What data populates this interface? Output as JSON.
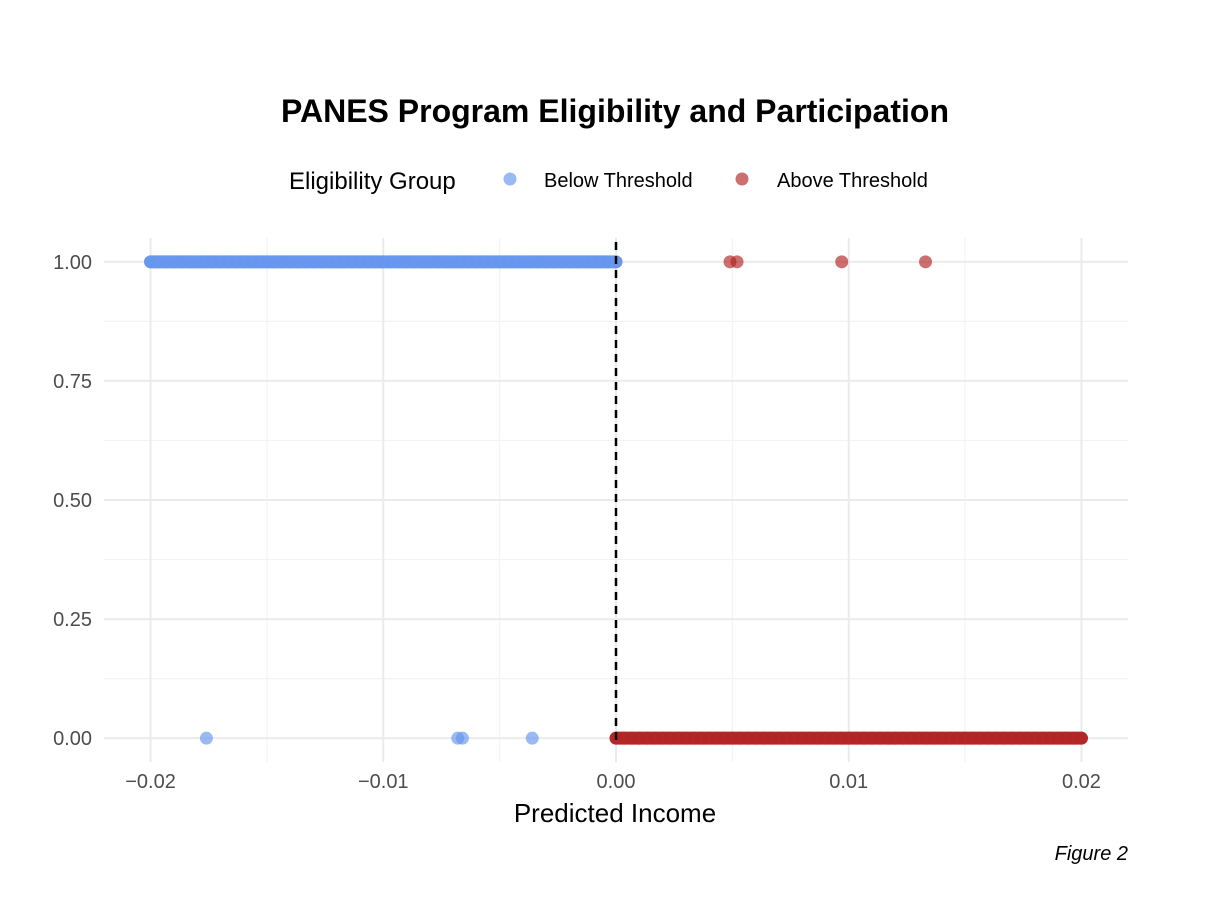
{
  "chart_data": {
    "type": "scatter",
    "title": "PANES Program Eligibility and Participation",
    "xlabel": "Predicted Income",
    "ylabel": "",
    "caption": "Figure 2",
    "xlim": [
      -0.022,
      0.022
    ],
    "ylim": [
      -0.05,
      1.05
    ],
    "x_ticks": [
      -0.02,
      -0.01,
      0.0,
      0.01,
      0.02
    ],
    "x_tick_labels": [
      "−0.02",
      "−0.01",
      "0.00",
      "0.01",
      "0.02"
    ],
    "x_minor_ticks": [
      -0.015,
      -0.005,
      0.005,
      0.015
    ],
    "y_ticks": [
      0.0,
      0.25,
      0.5,
      0.75,
      1.0
    ],
    "y_tick_labels": [
      "0.00",
      "0.25",
      "0.50",
      "0.75",
      "1.00"
    ],
    "y_minor_ticks": [
      0.125,
      0.375,
      0.625,
      0.875
    ],
    "grid": true,
    "threshold": {
      "x": 0.0,
      "style": "dashed",
      "color": "#000000"
    },
    "legend": {
      "title": "Eligibility Group",
      "position": "top",
      "entries": [
        {
          "label": "Below Threshold",
          "color": "#6495ed"
        },
        {
          "label": "Above Threshold",
          "color": "#b22222"
        }
      ]
    },
    "series": [
      {
        "name": "Below Threshold",
        "color": "#6495ed",
        "opacity": 0.65,
        "dense_bands": [
          {
            "x_from": -0.02,
            "x_to": 0.0,
            "y": 1.0
          }
        ],
        "points": [
          {
            "x": -0.0176,
            "y": 0.0
          },
          {
            "x": -0.0068,
            "y": 0.0
          },
          {
            "x": -0.0066,
            "y": 0.0
          },
          {
            "x": -0.0036,
            "y": 0.0
          }
        ]
      },
      {
        "name": "Above Threshold",
        "color": "#b22222",
        "opacity": 0.65,
        "dense_bands": [
          {
            "x_from": 0.0,
            "x_to": 0.02,
            "y": 0.0
          }
        ],
        "points": [
          {
            "x": 0.0049,
            "y": 1.0
          },
          {
            "x": 0.0052,
            "y": 1.0
          },
          {
            "x": 0.0097,
            "y": 1.0
          },
          {
            "x": 0.0133,
            "y": 1.0
          }
        ]
      }
    ]
  }
}
